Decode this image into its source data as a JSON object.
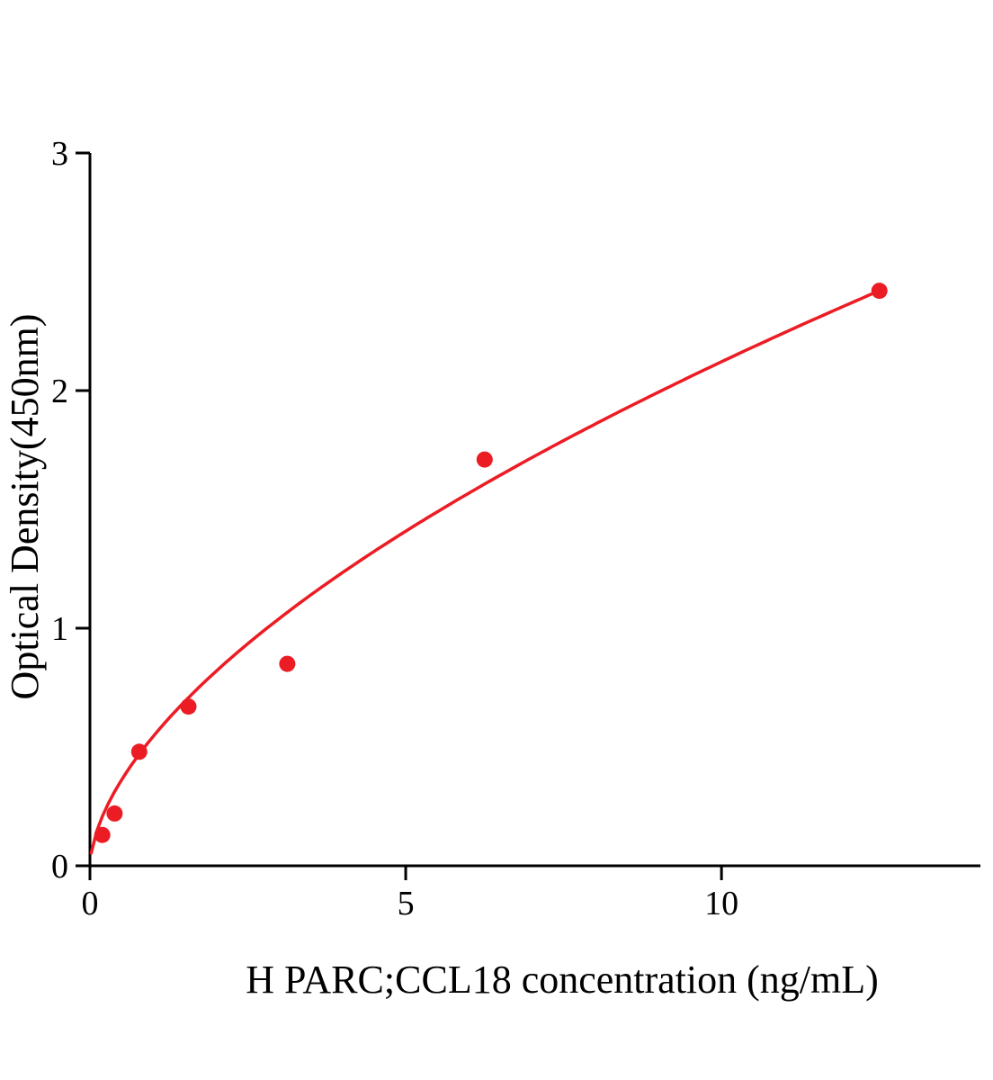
{
  "figure": {
    "background": "#ffffff"
  },
  "chart_data": {
    "type": "scatter",
    "title": "",
    "xlabel": "H PARC;CCL18 concentration (ng/mL)",
    "ylabel": "Optical Density(450nm)",
    "xlim": [
      0,
      14.1
    ],
    "ylim": [
      0,
      3
    ],
    "x_ticks": [
      0,
      5,
      10
    ],
    "y_ticks": [
      0,
      1,
      2,
      3
    ],
    "grid": false,
    "legend": null,
    "marker_color": "#ec1c24",
    "line_color": "#ec1c24",
    "axis_color": "#000000",
    "points": [
      {
        "x": 0.195,
        "y": 0.13
      },
      {
        "x": 0.39,
        "y": 0.22
      },
      {
        "x": 0.78,
        "y": 0.48
      },
      {
        "x": 1.56,
        "y": 0.67
      },
      {
        "x": 3.125,
        "y": 0.85
      },
      {
        "x": 6.25,
        "y": 1.71
      },
      {
        "x": 12.5,
        "y": 2.42
      }
    ],
    "fit_curve": {
      "type": "power",
      "a": 0.544,
      "b": 0.591,
      "x_start": 0.02,
      "x_end": 12.5
    }
  }
}
